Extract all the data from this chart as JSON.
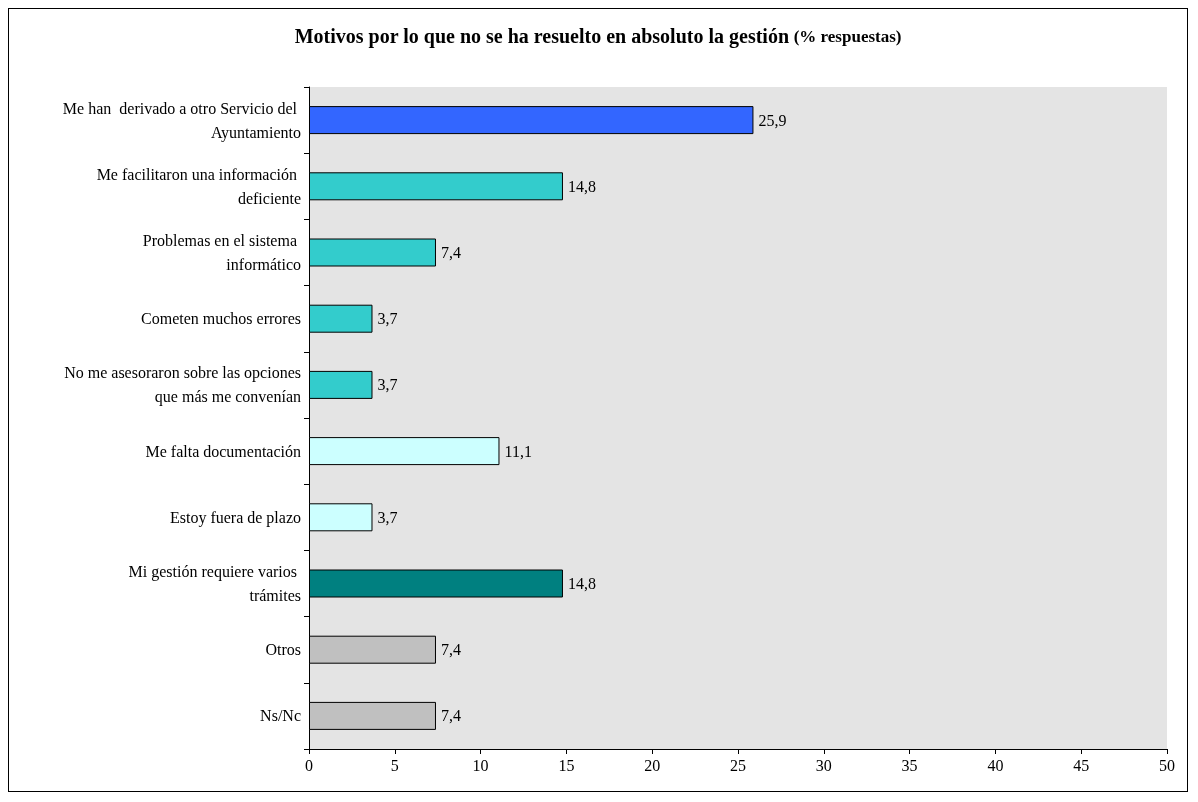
{
  "chart_data": {
    "type": "bar",
    "orientation": "horizontal",
    "title": "Motivos por lo que no se ha resuelto en absoluto la gestión",
    "subtitle": "(% respuestas)",
    "categories": [
      "Me han  derivado a otro Servicio del Ayuntamiento",
      "Me facilitaron una información deficiente",
      "Problemas en el sistema informático",
      "Cometen muchos errores",
      "No me asesoraron sobre las opciones que más me convenían",
      "Me falta documentación",
      "Estoy fuera de plazo",
      "Mi gestión requiere varios trámites",
      "Otros",
      "Ns/Nc"
    ],
    "values": [
      25.9,
      14.8,
      7.4,
      3.7,
      3.7,
      11.1,
      3.7,
      14.8,
      7.4,
      7.4
    ],
    "value_labels": [
      "25,9",
      "14,8",
      "7,4",
      "3,7",
      "3,7",
      "11,1",
      "3,7",
      "14,8",
      "7,4",
      "7,4"
    ],
    "colors": [
      "#3366ff",
      "#33cccc",
      "#33cccc",
      "#33cccc",
      "#33cccc",
      "#ccffff",
      "#ccffff",
      "#008080",
      "#c0c0c0",
      "#c0c0c0"
    ],
    "xlim": [
      0,
      50
    ],
    "xticks": [
      0,
      5,
      10,
      15,
      20,
      25,
      30,
      35,
      40,
      45,
      50
    ],
    "grid": false
  }
}
